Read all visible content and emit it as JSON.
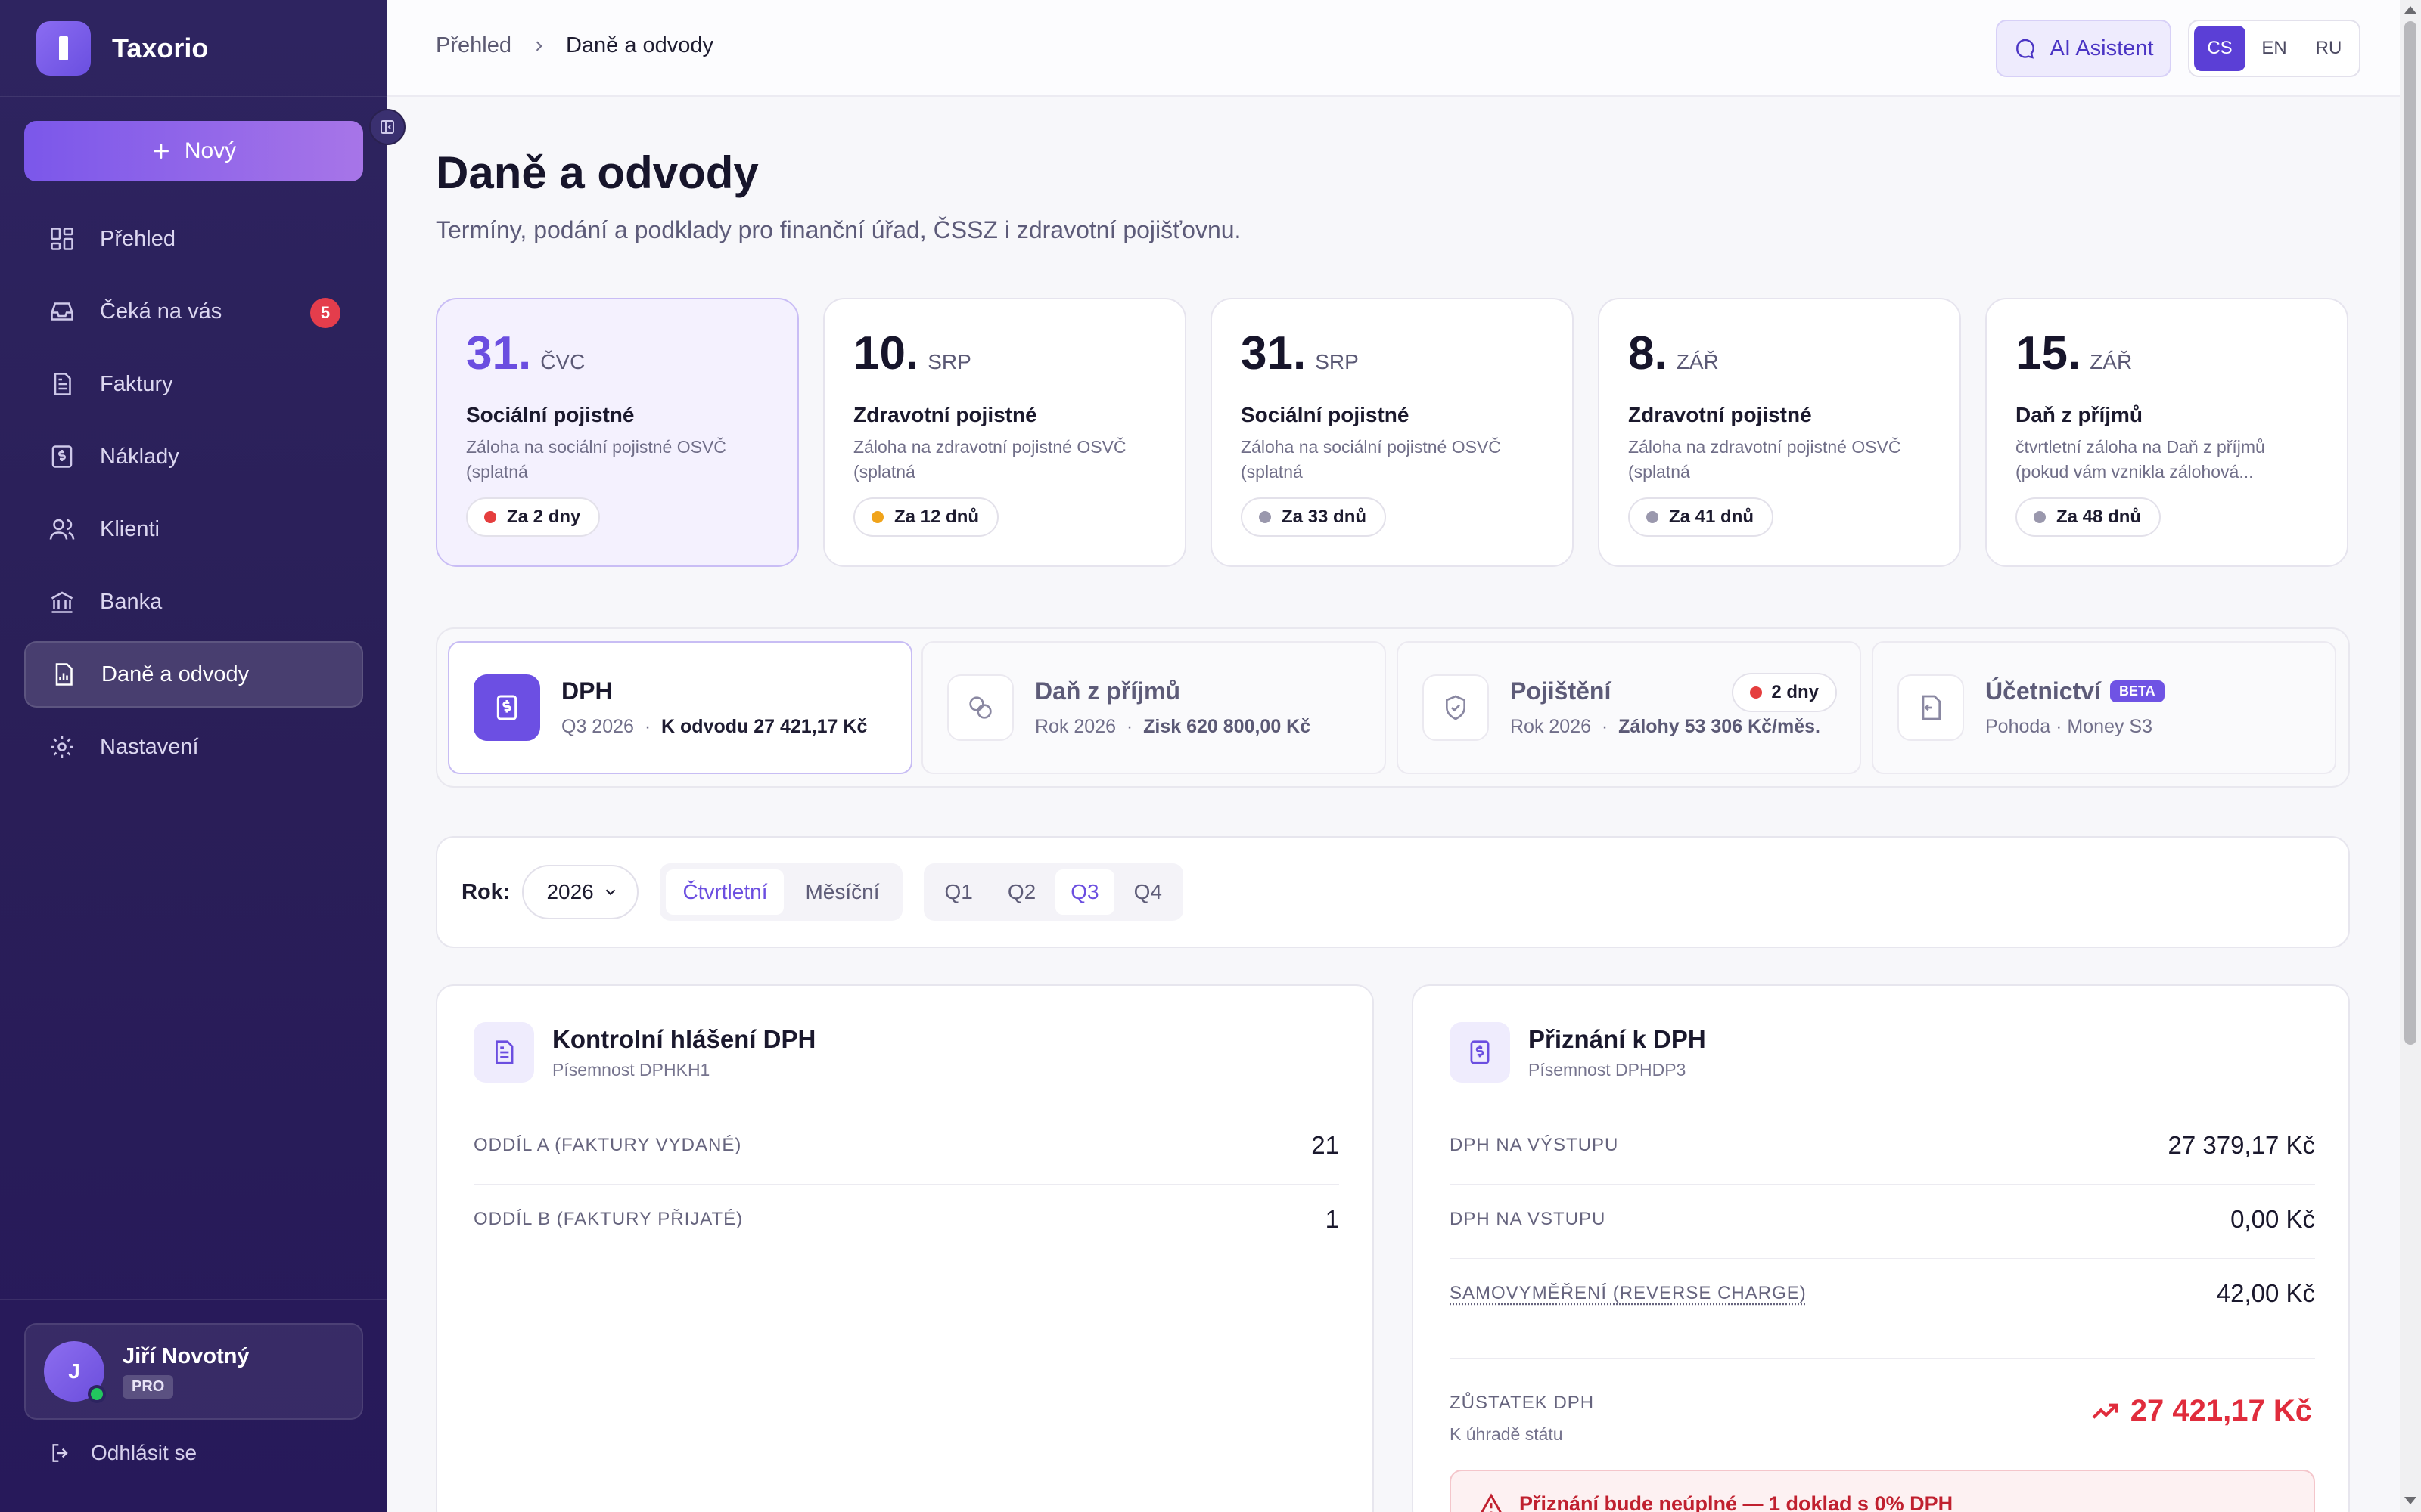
{
  "app": {
    "name": "Taxorio"
  },
  "sidebar": {
    "new_button": "Nový",
    "items": [
      {
        "label": "Přehled",
        "icon": "dashboard-icon"
      },
      {
        "label": "Čeká na vás",
        "icon": "inbox-icon",
        "badge": "5"
      },
      {
        "label": "Faktury",
        "icon": "invoice-icon"
      },
      {
        "label": "Náklady",
        "icon": "expense-icon"
      },
      {
        "label": "Klienti",
        "icon": "users-icon"
      },
      {
        "label": "Banka",
        "icon": "bank-icon"
      },
      {
        "label": "Daně a odvody",
        "icon": "tax-report-icon",
        "active": true
      },
      {
        "label": "Nastavení",
        "icon": "gear-icon"
      }
    ],
    "user": {
      "initial": "J",
      "name": "Jiří Novotný",
      "plan": "PRO"
    },
    "logout": "Odhlásit se"
  },
  "topbar": {
    "breadcrumb": [
      "Přehled",
      "Daně a odvody"
    ],
    "ai_button": "AI Asistent",
    "languages": [
      "CS",
      "EN",
      "RU"
    ],
    "active_language": "CS"
  },
  "page": {
    "title": "Daně a odvody",
    "subtitle": "Termíny, podání a podklady pro finanční úřad, ČSSZ i zdravotní pojišťovnu."
  },
  "deadlines": [
    {
      "day": "31.",
      "month": "ČVC",
      "title": "Sociální pojistné",
      "desc": "Záloha na sociální pojistné OSVČ (splatná",
      "due": "Za 2 dny",
      "status_color": "#e53e3e"
    },
    {
      "day": "10.",
      "month": "SRP",
      "title": "Zdravotní pojistné",
      "desc": "Záloha na zdravotní pojistné OSVČ (splatná",
      "due": "Za 12 dnů",
      "status_color": "#f0a31a"
    },
    {
      "day": "31.",
      "month": "SRP",
      "title": "Sociální pojistné",
      "desc": "Záloha na sociální pojistné OSVČ (splatná",
      "due": "Za 33 dnů",
      "status_color": "#9a98ad"
    },
    {
      "day": "8.",
      "month": "ZÁŘ",
      "title": "Zdravotní pojistné",
      "desc": "Záloha na zdravotní pojistné OSVČ (splatná",
      "due": "Za 41 dnů",
      "status_color": "#9a98ad"
    },
    {
      "day": "15.",
      "month": "ZÁŘ",
      "title": "Daň z příjmů",
      "desc": "čtvrtletní záloha na Daň z příjmů (pokud vám vznikla zálohová...",
      "due": "Za 48 dnů",
      "status_color": "#9a98ad"
    }
  ],
  "tax_tabs": {
    "dph": {
      "title": "DPH",
      "period": "Q3 2026",
      "value": "K odvodu 27 421,17 Kč"
    },
    "income": {
      "title": "Daň z příjmů",
      "period": "Rok 2026",
      "value": "Zisk 620 800,00 Kč"
    },
    "insurance": {
      "title": "Pojištění",
      "period": "Rok 2026",
      "value": "Zálohy 53 306 Kč/měs.",
      "badge": "2 dny"
    },
    "accounting": {
      "title": "Účetnictví",
      "beta": "BETA",
      "sub": "Pohoda · Money S3"
    }
  },
  "filters": {
    "year_label": "Rok:",
    "year": "2026",
    "modes": [
      "Čtvrtletní",
      "Měsíční"
    ],
    "active_mode": "Čtvrtletní",
    "quarters": [
      "Q1",
      "Q2",
      "Q3",
      "Q4"
    ],
    "active_quarter": "Q3"
  },
  "kontrolni": {
    "title": "Kontrolní hlášení DPH",
    "sub": "Písemnost DPHKH1",
    "rows": [
      {
        "label": "ODDÍL A (FAKTURY VYDANÉ)",
        "value": "21"
      },
      {
        "label": "ODDÍL B (FAKTURY PŘIJATÉ)",
        "value": "1"
      }
    ]
  },
  "priznani": {
    "title": "Přiznání k DPH",
    "sub": "Písemnost DPHDP3",
    "rows": [
      {
        "label": "DPH NA VÝSTUPU",
        "value": "27 379,17 Kč"
      },
      {
        "label": "DPH NA VSTUPU",
        "value": "0,00 Kč"
      },
      {
        "label": "SAMOVYMĚŘENÍ (REVERSE CHARGE)",
        "value": "42,00 Kč"
      }
    ],
    "balance_label": "ZŮSTATEK DPH",
    "balance_sub": "K úhradě státu",
    "balance_value": "27 421,17 Kč",
    "warning": "Přiznání bude neúplné — 1 doklad s 0% DPH"
  },
  "colors": {
    "accent": "#6b4ee0",
    "sidebar_bg": "#2b2159",
    "danger": "#e02c3c"
  }
}
